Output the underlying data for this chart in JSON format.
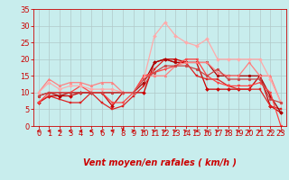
{
  "title": "",
  "xlabel": "Vent moyen/en rafales ( km/h )",
  "ylabel": "",
  "xlim": [
    -0.5,
    23.5
  ],
  "ylim": [
    0,
    35
  ],
  "yticks": [
    0,
    5,
    10,
    15,
    20,
    25,
    30,
    35
  ],
  "xticks": [
    0,
    1,
    2,
    3,
    4,
    5,
    6,
    7,
    8,
    9,
    10,
    11,
    12,
    13,
    14,
    15,
    16,
    17,
    18,
    19,
    20,
    21,
    22,
    23
  ],
  "background_color": "#c8eded",
  "grid_color": "#b0c8c8",
  "lines": [
    {
      "x": [
        0,
        1,
        2,
        3,
        4,
        5,
        6,
        7,
        8,
        9,
        10,
        11,
        12,
        13,
        14,
        15,
        16,
        17,
        18,
        19,
        20,
        21,
        22,
        23
      ],
      "y": [
        7,
        9,
        9,
        9,
        10,
        10,
        10,
        6,
        10,
        10,
        10,
        19,
        20,
        20,
        19,
        19,
        11,
        11,
        11,
        11,
        11,
        15,
        6,
        4
      ],
      "color": "#cc0000",
      "lw": 0.9,
      "marker": "D",
      "ms": 2.0
    },
    {
      "x": [
        0,
        1,
        2,
        3,
        4,
        5,
        6,
        7,
        8,
        9,
        10,
        11,
        12,
        13,
        14,
        15,
        16,
        17,
        18,
        19,
        20,
        21,
        22,
        23
      ],
      "y": [
        7,
        9,
        8,
        7,
        7,
        10,
        7,
        5,
        6,
        9,
        12,
        17,
        20,
        19,
        19,
        15,
        14,
        14,
        12,
        11,
        11,
        11,
        6,
        5
      ],
      "color": "#dd2222",
      "lw": 0.9,
      "marker": "s",
      "ms": 2.0
    },
    {
      "x": [
        0,
        1,
        2,
        3,
        4,
        5,
        6,
        7,
        8,
        9,
        10,
        11,
        12,
        13,
        14,
        15,
        16,
        17,
        18,
        19,
        20,
        21,
        22,
        23
      ],
      "y": [
        9,
        10,
        9,
        10,
        10,
        10,
        10,
        10,
        10,
        10,
        13,
        19,
        20,
        19,
        19,
        19,
        19,
        15,
        15,
        15,
        15,
        15,
        9,
        4
      ],
      "color": "#aa0000",
      "lw": 0.9,
      "marker": "o",
      "ms": 2.0
    },
    {
      "x": [
        0,
        1,
        2,
        3,
        4,
        5,
        6,
        7,
        8,
        9,
        10,
        11,
        12,
        13,
        14,
        15,
        16,
        17,
        18,
        19,
        20,
        21,
        22,
        23
      ],
      "y": [
        10,
        14,
        12,
        13,
        13,
        12,
        13,
        13,
        10,
        10,
        15,
        15,
        15,
        18,
        19,
        19,
        19,
        16,
        15,
        15,
        19,
        15,
        15,
        7
      ],
      "color": "#ff8080",
      "lw": 0.9,
      "marker": "^",
      "ms": 2.0
    },
    {
      "x": [
        0,
        1,
        2,
        3,
        4,
        5,
        6,
        7,
        8,
        9,
        10,
        11,
        12,
        13,
        14,
        15,
        16,
        17,
        18,
        19,
        20,
        21,
        22,
        23
      ],
      "y": [
        7,
        10,
        10,
        10,
        12,
        10,
        10,
        7,
        7,
        10,
        15,
        16,
        17,
        18,
        20,
        20,
        15,
        13,
        12,
        12,
        12,
        13,
        10,
        0
      ],
      "color": "#ff4444",
      "lw": 0.9,
      "marker": "v",
      "ms": 2.0
    },
    {
      "x": [
        0,
        1,
        2,
        3,
        4,
        5,
        6,
        7,
        8,
        9,
        10,
        11,
        12,
        13,
        14,
        15,
        16,
        17,
        18,
        19,
        20,
        21,
        22,
        23
      ],
      "y": [
        10,
        13,
        11,
        12,
        12,
        11,
        11,
        11,
        10,
        10,
        14,
        27,
        31,
        27,
        25,
        24,
        26,
        20,
        20,
        20,
        20,
        20,
        14,
        7
      ],
      "color": "#ffaaaa",
      "lw": 0.9,
      "marker": "D",
      "ms": 2.0
    },
    {
      "x": [
        0,
        1,
        2,
        3,
        4,
        5,
        6,
        7,
        8,
        9,
        10,
        11,
        12,
        13,
        14,
        15,
        16,
        17,
        18,
        19,
        20,
        21,
        22,
        23
      ],
      "y": [
        9,
        10,
        10,
        10,
        10,
        10,
        10,
        10,
        10,
        10,
        14,
        16,
        18,
        18,
        18,
        17,
        15,
        17,
        14,
        14,
        14,
        14,
        8,
        7
      ],
      "color": "#cc4444",
      "lw": 0.9,
      "marker": "o",
      "ms": 2.0
    }
  ],
  "wind_dirs": [
    225,
    225,
    225,
    225,
    225,
    225,
    225,
    225,
    270,
    315,
    45,
    45,
    45,
    45,
    45,
    45,
    45,
    45,
    45,
    45,
    45,
    45,
    225,
    225
  ],
  "arrow_color": "#cc0000",
  "xlabel_color": "#cc0000",
  "xlabel_fontsize": 7,
  "tick_color": "#cc0000",
  "tick_fontsize": 6
}
